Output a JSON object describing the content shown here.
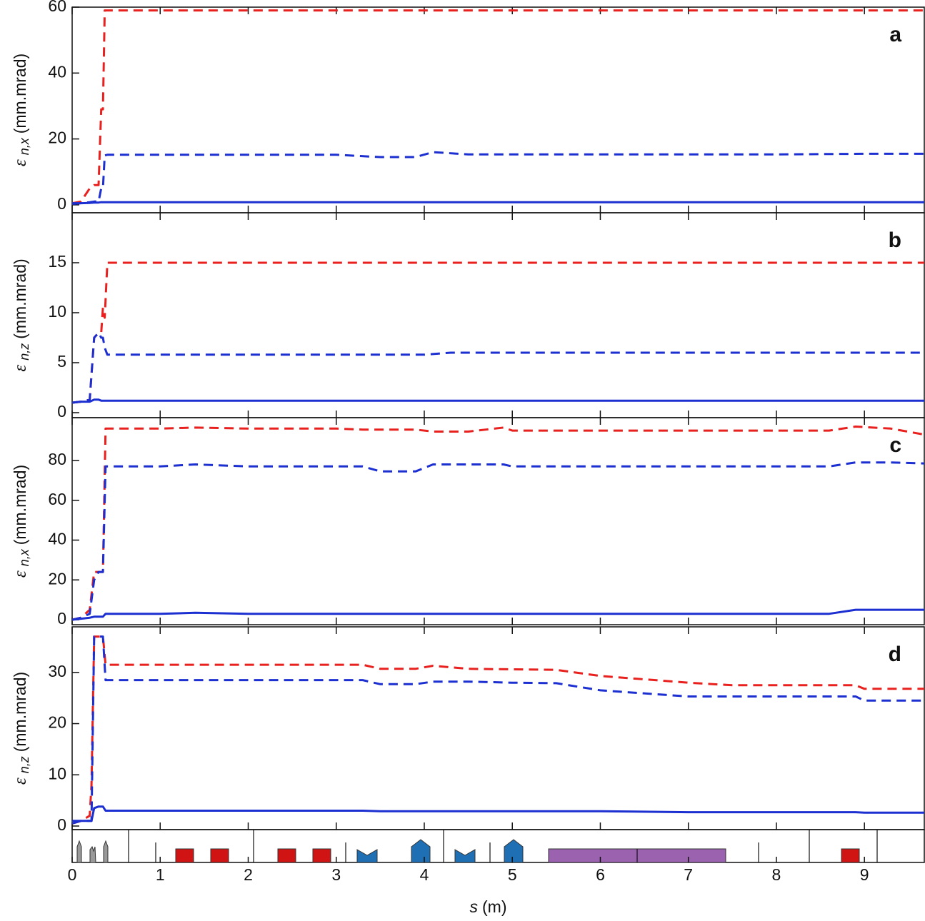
{
  "chart_data": [
    {
      "type": "line",
      "label": "a",
      "ylabel_symbol": "ε",
      "ylabel_subscript": "n,x",
      "ylabel_unit": "(mm.mrad)",
      "xlim": [
        0,
        9.68
      ],
      "xticks": [
        0,
        1,
        2,
        3,
        4,
        5,
        6,
        7,
        8,
        9
      ],
      "ylim": [
        -2.4,
        60
      ],
      "yticks": [
        0,
        20,
        40,
        60
      ],
      "x": [
        0,
        0.1,
        0.2,
        0.25,
        0.3,
        0.33,
        0.35,
        0.37,
        0.4,
        1,
        2,
        3,
        3.5,
        3.9,
        4.1,
        4.5,
        5,
        6,
        7,
        8,
        9,
        9.68
      ],
      "series": [
        {
          "color": "#e8211f",
          "linestyle": "dashed",
          "values": [
            0.5,
            1,
            5,
            6,
            6,
            29,
            29,
            59,
            59,
            59,
            59,
            59,
            59,
            59,
            59,
            59,
            59,
            59,
            59,
            59,
            59,
            59
          ]
        },
        {
          "color": "#1c2fd0",
          "linestyle": "dashed",
          "values": [
            0.5,
            0.5,
            0.8,
            1,
            1,
            5,
            5,
            15,
            15.2,
            15.2,
            15.2,
            15.2,
            14.5,
            14.5,
            16,
            15.3,
            15.3,
            15.3,
            15.3,
            15.3,
            15.5,
            15.5
          ]
        },
        {
          "color": "#1c2fd0",
          "linestyle": "solid",
          "values": [
            0.3,
            0.5,
            0.6,
            0.7,
            0.7,
            0.8,
            0.8,
            0.8,
            0.8,
            0.8,
            0.8,
            0.8,
            0.8,
            0.8,
            0.8,
            0.8,
            0.8,
            0.8,
            0.8,
            0.8,
            0.8,
            0.8
          ]
        }
      ]
    },
    {
      "type": "line",
      "label": "b",
      "ylabel_symbol": "ε",
      "ylabel_subscript": "n,z",
      "ylabel_unit": "(mm.mrad)",
      "xlim": [
        0,
        9.68
      ],
      "xticks": [
        0,
        1,
        2,
        3,
        4,
        5,
        6,
        7,
        8,
        9
      ],
      "ylim": [
        -0.5,
        20
      ],
      "yticks": [
        0,
        5,
        10,
        15
      ],
      "x": [
        0,
        0.1,
        0.15,
        0.2,
        0.25,
        0.3,
        0.33,
        0.35,
        0.37,
        0.4,
        1,
        2,
        3,
        4,
        4.3,
        5,
        6,
        7,
        8,
        9,
        9.68
      ],
      "series": [
        {
          "color": "#e8211f",
          "linestyle": "dashed",
          "values": [
            1,
            1.1,
            1.2,
            1.3,
            7.5,
            8,
            8,
            10.5,
            9.5,
            15,
            15,
            15,
            15,
            15,
            15,
            15,
            15,
            15,
            15,
            15,
            15
          ]
        },
        {
          "color": "#1c2fd0",
          "linestyle": "dashed",
          "values": [
            1,
            1.1,
            1.2,
            1.3,
            7.5,
            8,
            7.5,
            7.5,
            6.5,
            5.8,
            5.8,
            5.8,
            5.8,
            5.8,
            6,
            6,
            6,
            6,
            6,
            6,
            6
          ]
        },
        {
          "color": "#1c2fd0",
          "linestyle": "solid",
          "values": [
            1,
            1.1,
            1.1,
            1.1,
            1.3,
            1.3,
            1.2,
            1.2,
            1.2,
            1.2,
            1.2,
            1.2,
            1.2,
            1.2,
            1.2,
            1.2,
            1.2,
            1.2,
            1.2,
            1.2,
            1.2
          ]
        }
      ]
    },
    {
      "type": "line",
      "label": "c",
      "ylabel_symbol": "ε",
      "ylabel_subscript": "n,x",
      "ylabel_unit": "(mm.mrad)",
      "xlim": [
        0,
        9.68
      ],
      "xticks": [
        0,
        1,
        2,
        3,
        4,
        5,
        6,
        7,
        8,
        9
      ],
      "ylim": [
        -2.5,
        101.5
      ],
      "yticks": [
        0,
        20,
        40,
        60,
        80
      ],
      "x": [
        0,
        0.1,
        0.2,
        0.25,
        0.3,
        0.35,
        0.38,
        0.4,
        1,
        1.4,
        2,
        3,
        3.3,
        3.5,
        3.9,
        4.1,
        4.5,
        4.9,
        5,
        6,
        7,
        8,
        8.6,
        8.9,
        9.3,
        9.68
      ],
      "series": [
        {
          "color": "#e8211f",
          "linestyle": "dashed",
          "values": [
            0,
            1,
            5,
            24,
            24,
            24,
            96,
            96,
            96,
            96.5,
            96,
            96,
            95.5,
            95.5,
            95.5,
            94.5,
            94.5,
            96.5,
            95,
            95,
            95,
            95,
            95,
            97,
            96,
            93
          ]
        },
        {
          "color": "#1c2fd0",
          "linestyle": "dashed",
          "values": [
            0,
            1,
            3,
            20,
            24,
            24,
            77,
            77,
            77,
            78,
            77,
            77,
            77,
            74.5,
            74.5,
            78,
            78,
            78,
            77,
            77,
            77,
            77,
            77,
            79,
            79,
            78.5
          ]
        },
        {
          "color": "#1c2fd0",
          "linestyle": "solid",
          "values": [
            0,
            0.5,
            1,
            1.5,
            1.5,
            1.5,
            3,
            3,
            3,
            3.5,
            3,
            3,
            3,
            3,
            3,
            3,
            3,
            3,
            3,
            3,
            3,
            3,
            3,
            5,
            5,
            5
          ]
        }
      ]
    },
    {
      "type": "line",
      "label": "d",
      "ylabel_symbol": "ε",
      "ylabel_subscript": "n,z",
      "ylabel_unit": "(mm.mrad)",
      "xlabel_symbol": "s",
      "xlabel_unit": "(m)",
      "xlim": [
        0,
        9.68
      ],
      "xticks": [
        0,
        1,
        2,
        3,
        4,
        5,
        6,
        7,
        8,
        9
      ],
      "ylim": [
        -0.7,
        38.9
      ],
      "yticks": [
        0,
        10,
        20,
        30
      ],
      "x": [
        0,
        0.1,
        0.2,
        0.22,
        0.25,
        0.3,
        0.35,
        0.38,
        0.4,
        1,
        2,
        3,
        3.3,
        3.5,
        3.9,
        4.1,
        4.5,
        5,
        5.5,
        6,
        7,
        7.5,
        8,
        8.5,
        8.9,
        9,
        9.68
      ],
      "series": [
        {
          "color": "#e8211f",
          "linestyle": "dashed",
          "values": [
            0.5,
            1,
            2,
            8,
            37,
            37,
            37,
            31.5,
            31.5,
            31.5,
            31.5,
            31.5,
            31.5,
            30.7,
            30.7,
            31.3,
            30.7,
            30.6,
            30.5,
            29.3,
            28,
            27.5,
            27.5,
            27.5,
            27.5,
            26.8,
            26.8
          ]
        },
        {
          "color": "#1c2fd0",
          "linestyle": "dashed",
          "values": [
            0.5,
            1,
            1,
            1,
            37,
            37,
            37,
            28.5,
            28.5,
            28.5,
            28.5,
            28.5,
            28.5,
            27.7,
            27.7,
            28.2,
            28.2,
            28,
            27.9,
            26.5,
            25.3,
            25.3,
            25.3,
            25.3,
            25.3,
            24.5,
            24.5
          ]
        },
        {
          "color": "#1c2fd0",
          "linestyle": "solid",
          "values": [
            1,
            1,
            1,
            1,
            3.5,
            3.8,
            3.8,
            3,
            3,
            3,
            3,
            3,
            3,
            2.9,
            2.9,
            2.9,
            2.9,
            2.9,
            2.9,
            2.9,
            2.7,
            2.7,
            2.7,
            2.7,
            2.7,
            2.6,
            2.6
          ]
        }
      ]
    }
  ]
}
